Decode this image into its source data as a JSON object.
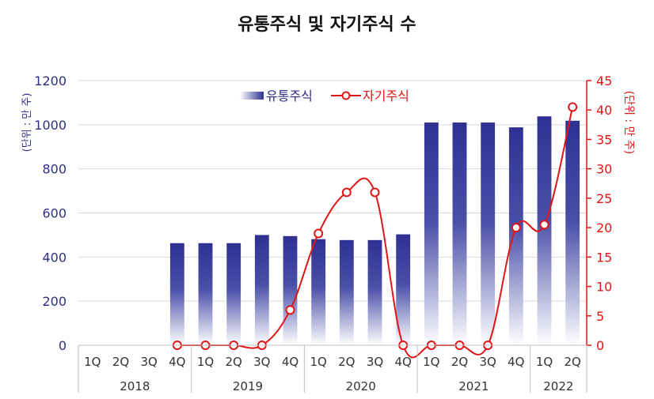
{
  "chart_data": {
    "type": "bar",
    "title": "유통주식 및 자기주식 수",
    "ylabel_left": "(단위 : 만 주)",
    "ylabel_right": "(단위 : 만 주)",
    "ylim_left": [
      0,
      1200
    ],
    "yticks_left": [
      0,
      200,
      400,
      600,
      800,
      1000,
      1200
    ],
    "ylim_right": [
      0,
      45
    ],
    "yticks_right": [
      0,
      5,
      10,
      15,
      20,
      25,
      30,
      35,
      40,
      45
    ],
    "grid": true,
    "legend_position": "top",
    "quarters": [
      "1Q",
      "2Q",
      "3Q",
      "4Q",
      "1Q",
      "2Q",
      "3Q",
      "4Q",
      "1Q",
      "2Q",
      "3Q",
      "4Q",
      "1Q",
      "2Q",
      "3Q",
      "4Q",
      "1Q",
      "2Q"
    ],
    "years": [
      {
        "label": "2018",
        "count": 4
      },
      {
        "label": "2019",
        "count": 4
      },
      {
        "label": "2020",
        "count": 4
      },
      {
        "label": "2021",
        "count": 4
      },
      {
        "label": "2022",
        "count": 2
      }
    ],
    "series": [
      {
        "name": "유통주식",
        "type": "bar",
        "axis": "left",
        "color": "#2e3192",
        "values": [
          null,
          null,
          null,
          463,
          463,
          463,
          500,
          495,
          481,
          477,
          477,
          503,
          1010,
          1010,
          1010,
          988,
          1038,
          1018
        ]
      },
      {
        "name": "자기주식",
        "type": "line",
        "axis": "right",
        "color": "#e01616",
        "values": [
          null,
          null,
          null,
          0,
          0,
          0,
          0,
          6,
          19,
          26,
          26,
          0,
          0,
          0,
          0,
          20,
          20.5,
          40.5
        ]
      }
    ]
  }
}
